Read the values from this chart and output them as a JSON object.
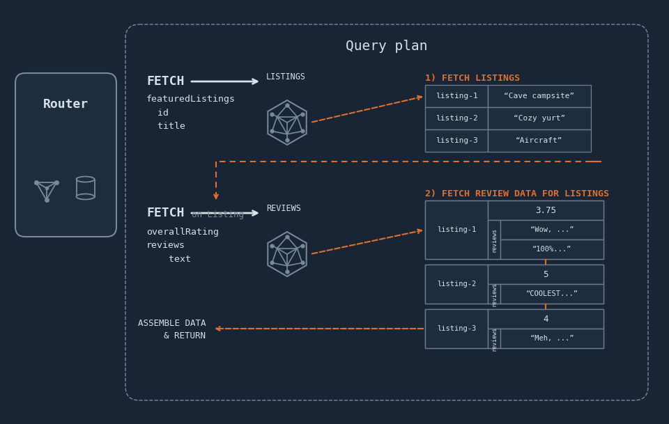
{
  "bg_color": "#192535",
  "panel_color": "#1e2d3d",
  "text_color": "#d8e0e8",
  "orange_color": "#e07030",
  "gray_color": "#7a8a9a",
  "border_color": "#6a7a8a",
  "query_plan_title": "Query plan",
  "router_label": "Router",
  "section1_title": "1) FETCH LISTINGS",
  "section2_title": "2) FETCH REVIEW DATA FOR LISTINGS",
  "assemble_label": "ASSEMBLE DATA\n& RETURN",
  "listings": [
    {
      "id": "listing-1",
      "title": "“Cave campsite”"
    },
    {
      "id": "listing-2",
      "title": "“Cozy yurt”"
    },
    {
      "id": "listing-3",
      "title": "“Aircraft”"
    }
  ],
  "reviews": [
    {
      "id": "listing-1",
      "rating": "3.75",
      "texts": [
        "“Wow, ...”",
        "“100%...”"
      ]
    },
    {
      "id": "listing-2",
      "rating": "5",
      "texts": [
        "“COOLEST...”"
      ]
    },
    {
      "id": "listing-3",
      "rating": "4",
      "texts": [
        "“Meh, ...”"
      ]
    }
  ]
}
